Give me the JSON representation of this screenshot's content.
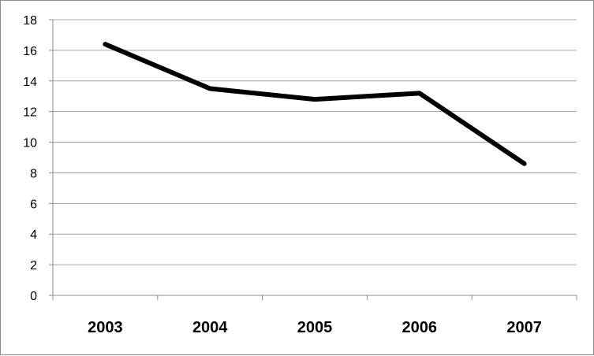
{
  "chart_data": {
    "type": "line",
    "categories": [
      "2003",
      "2004",
      "2005",
      "2006",
      "2007"
    ],
    "series": [
      {
        "values": [
          16.4,
          13.5,
          12.8,
          13.2,
          8.6
        ]
      }
    ],
    "yticks": [
      "0",
      "2",
      "4",
      "6",
      "8",
      "10",
      "12",
      "14",
      "16",
      "18"
    ],
    "ylim": [
      0,
      18
    ],
    "grid": true,
    "legend": "none",
    "line_color": "#000000",
    "grid_color": "#a6a6a6"
  }
}
